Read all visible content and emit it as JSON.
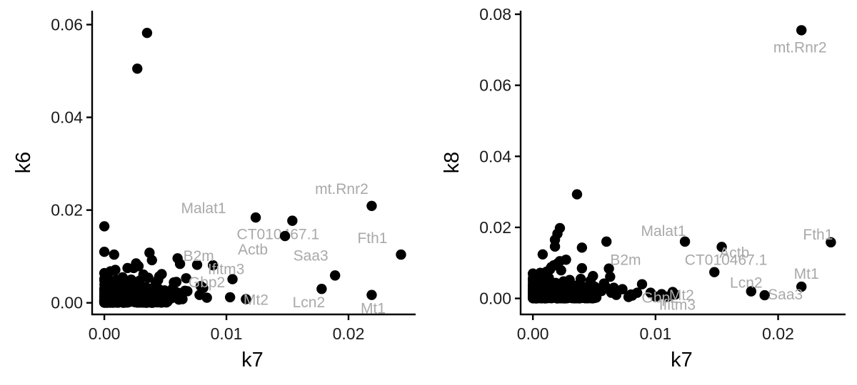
{
  "colors": {
    "point": "#000000",
    "label": "#a9a9a9",
    "axis": "#000000"
  },
  "chart_data": [
    {
      "type": "scatter",
      "xlabel": "k7",
      "ylabel": "k6",
      "xlim": [
        -0.001,
        0.0255
      ],
      "ylim": [
        -0.0025,
        0.063
      ],
      "x_ticks": [
        0,
        0.01,
        0.02
      ],
      "x_tick_labels": [
        "0.00",
        "0.01",
        "0.02"
      ],
      "y_ticks": [
        0,
        0.02,
        0.04,
        0.06
      ],
      "y_tick_labels": [
        "0.00",
        "0.02",
        "0.04",
        "0.06"
      ],
      "grid": false,
      "labeled_points": [
        {
          "label": "mt.Rnr2",
          "x": 0.0219,
          "y": 0.0209
        },
        {
          "label": "Malat1",
          "x": 0.0124,
          "y": 0.0184
        },
        {
          "label": "CT010467.1",
          "x": 0.0154,
          "y": 0.0177
        },
        {
          "label": "Actb",
          "x": 0.0148,
          "y": 0.0144
        },
        {
          "label": "Fth1",
          "x": 0.0243,
          "y": 0.0104
        },
        {
          "label": "B2m",
          "x": 0.0089,
          "y": 0.0081
        },
        {
          "label": "Saa3",
          "x": 0.0189,
          "y": 0.0059
        },
        {
          "label": "Ifitm3",
          "x": 0.0105,
          "y": 0.0051
        },
        {
          "label": "Gbp2",
          "x": 0.0081,
          "y": 0.0032
        },
        {
          "label": "Lcn2",
          "x": 0.0178,
          "y": 0.003
        },
        {
          "label": "Mt2",
          "x": 0.0116,
          "y": 0.0008
        },
        {
          "label": "Mt1",
          "x": 0.0219,
          "y": 0.0017
        }
      ],
      "points": [
        [
          0.0035,
          0.0582
        ],
        [
          0.0027,
          0.0505
        ],
        [
          0.0,
          0.0165
        ],
        [
          0.0,
          0.011
        ],
        [
          0.0008,
          0.0104
        ],
        [
          0.0037,
          0.0108
        ],
        [
          0.006,
          0.0096
        ],
        [
          0.0039,
          0.0092
        ],
        [
          0.0062,
          0.0084
        ],
        [
          0.0076,
          0.0082
        ],
        [
          0.0026,
          0.0085
        ],
        [
          0.0028,
          0.0079
        ],
        [
          0.0024,
          0.0075
        ],
        [
          0.0019,
          0.0075
        ],
        [
          0.0009,
          0.0071
        ],
        [
          0.0005,
          0.0068
        ],
        [
          0.0,
          0.0064
        ],
        [
          0.0047,
          0.0062
        ],
        [
          0.0032,
          0.0061
        ],
        [
          0.0045,
          0.0057
        ],
        [
          0.0015,
          0.0055
        ],
        [
          0.0036,
          0.0054
        ],
        [
          0.0067,
          0.0053
        ],
        [
          0.001,
          0.005
        ],
        [
          0.0044,
          0.0049
        ],
        [
          0.0059,
          0.0045
        ],
        [
          0.0057,
          0.0044
        ],
        [
          0.0042,
          0.004
        ],
        [
          0.0079,
          0.0036
        ],
        [
          0.0056,
          0.0031
        ],
        [
          0.0066,
          0.0026
        ],
        [
          0.0068,
          0.0025
        ],
        [
          0.006,
          0.0022
        ],
        [
          0.0062,
          0.002
        ],
        [
          0.0078,
          0.0017
        ],
        [
          0.0084,
          0.0011
        ],
        [
          0.0051,
          0.0014
        ],
        [
          0.0061,
          0.0007
        ],
        [
          0.0064,
          0.0008
        ],
        [
          0.0103,
          0.0012
        ],
        [
          0.0055,
          0.001
        ],
        [
          0.0048,
          0.0016
        ],
        [
          0.0034,
          0.0033
        ],
        [
          0.0011,
          0.0043
        ],
        [
          0.0003,
          0.0046
        ],
        [
          0.0022,
          0.005
        ],
        [
          0.0029,
          0.0048
        ],
        [
          0.0016,
          0.0039
        ],
        [
          0.0039,
          0.0022
        ],
        [
          0.0025,
          0.0028
        ]
      ]
    },
    {
      "type": "scatter",
      "xlabel": "k7",
      "ylabel": "k8",
      "xlim": [
        -0.001,
        0.0255
      ],
      "ylim": [
        -0.0045,
        0.081
      ],
      "x_ticks": [
        0,
        0.01,
        0.02
      ],
      "x_tick_labels": [
        "0.00",
        "0.01",
        "0.02"
      ],
      "y_ticks": [
        0,
        0.02,
        0.04,
        0.06,
        0.08
      ],
      "y_tick_labels": [
        "0.00",
        "0.02",
        "0.04",
        "0.06",
        "0.08"
      ],
      "grid": false,
      "labeled_points": [
        {
          "label": "mt.Rnr2",
          "x": 0.0219,
          "y": 0.0755
        },
        {
          "label": "Malat1",
          "x": 0.0124,
          "y": 0.016
        },
        {
          "label": "Fth1",
          "x": 0.0243,
          "y": 0.0158
        },
        {
          "label": "CT010467.1",
          "x": 0.0154,
          "y": 0.0145
        },
        {
          "label": "Actb",
          "x": 0.0148,
          "y": 0.0074
        },
        {
          "label": "B2m",
          "x": 0.0089,
          "y": 0.004
        },
        {
          "label": "Mt1",
          "x": 0.0219,
          "y": 0.0033
        },
        {
          "label": "Ifitm3",
          "x": 0.0105,
          "y": 0.0012
        },
        {
          "label": "Lcn2",
          "x": 0.0178,
          "y": 0.002
        },
        {
          "label": "Gbp2",
          "x": 0.0081,
          "y": 0.0008
        },
        {
          "label": "Mt2",
          "x": 0.0116,
          "y": 0.0011
        },
        {
          "label": "Saa3",
          "x": 0.0189,
          "y": 0.0009
        }
      ],
      "points": [
        [
          0.0036,
          0.0293
        ],
        [
          0.0022,
          0.0198
        ],
        [
          0.006,
          0.016
        ],
        [
          0.002,
          0.0182
        ],
        [
          0.0018,
          0.0165
        ],
        [
          0.0018,
          0.0146
        ],
        [
          0.004,
          0.0143
        ],
        [
          0.0008,
          0.0124
        ],
        [
          0.0027,
          0.0109
        ],
        [
          0.0022,
          0.0105
        ],
        [
          0.002,
          0.0098
        ],
        [
          0.0017,
          0.0093
        ],
        [
          0.0015,
          0.0088
        ],
        [
          0.0014,
          0.0082
        ],
        [
          0.004,
          0.0085
        ],
        [
          0.0062,
          0.0084
        ],
        [
          0.0023,
          0.0079
        ],
        [
          0.0011,
          0.0075
        ],
        [
          0.0006,
          0.0072
        ],
        [
          0.0,
          0.007
        ],
        [
          0.0049,
          0.0063
        ],
        [
          0.0039,
          0.0055
        ],
        [
          0.003,
          0.0052
        ],
        [
          0.0047,
          0.005
        ],
        [
          0.0063,
          0.0061
        ],
        [
          0.0058,
          0.0042
        ],
        [
          0.0059,
          0.0034
        ],
        [
          0.0066,
          0.003
        ],
        [
          0.0073,
          0.0026
        ],
        [
          0.0064,
          0.0016
        ],
        [
          0.0078,
          0.0004
        ],
        [
          0.008,
          0.0011
        ],
        [
          0.0085,
          0.0016
        ],
        [
          0.0096,
          0.0016
        ],
        [
          0.01,
          0.0005
        ],
        [
          0.011,
          0.0005
        ],
        [
          0.0114,
          0.0018
        ],
        [
          0.0052,
          0.0014
        ],
        [
          0.0044,
          0.002
        ],
        [
          0.0033,
          0.0034
        ],
        [
          0.0025,
          0.0048
        ],
        [
          0.0013,
          0.0058
        ],
        [
          0.0004,
          0.0052
        ],
        [
          0.0009,
          0.0043
        ],
        [
          0.0027,
          0.0039
        ],
        [
          0.0068,
          0.001
        ],
        [
          0.0056,
          0.0021
        ],
        [
          0.0045,
          0.0028
        ],
        [
          0.0019,
          0.0036
        ],
        [
          0.0031,
          0.0025
        ]
      ]
    }
  ]
}
